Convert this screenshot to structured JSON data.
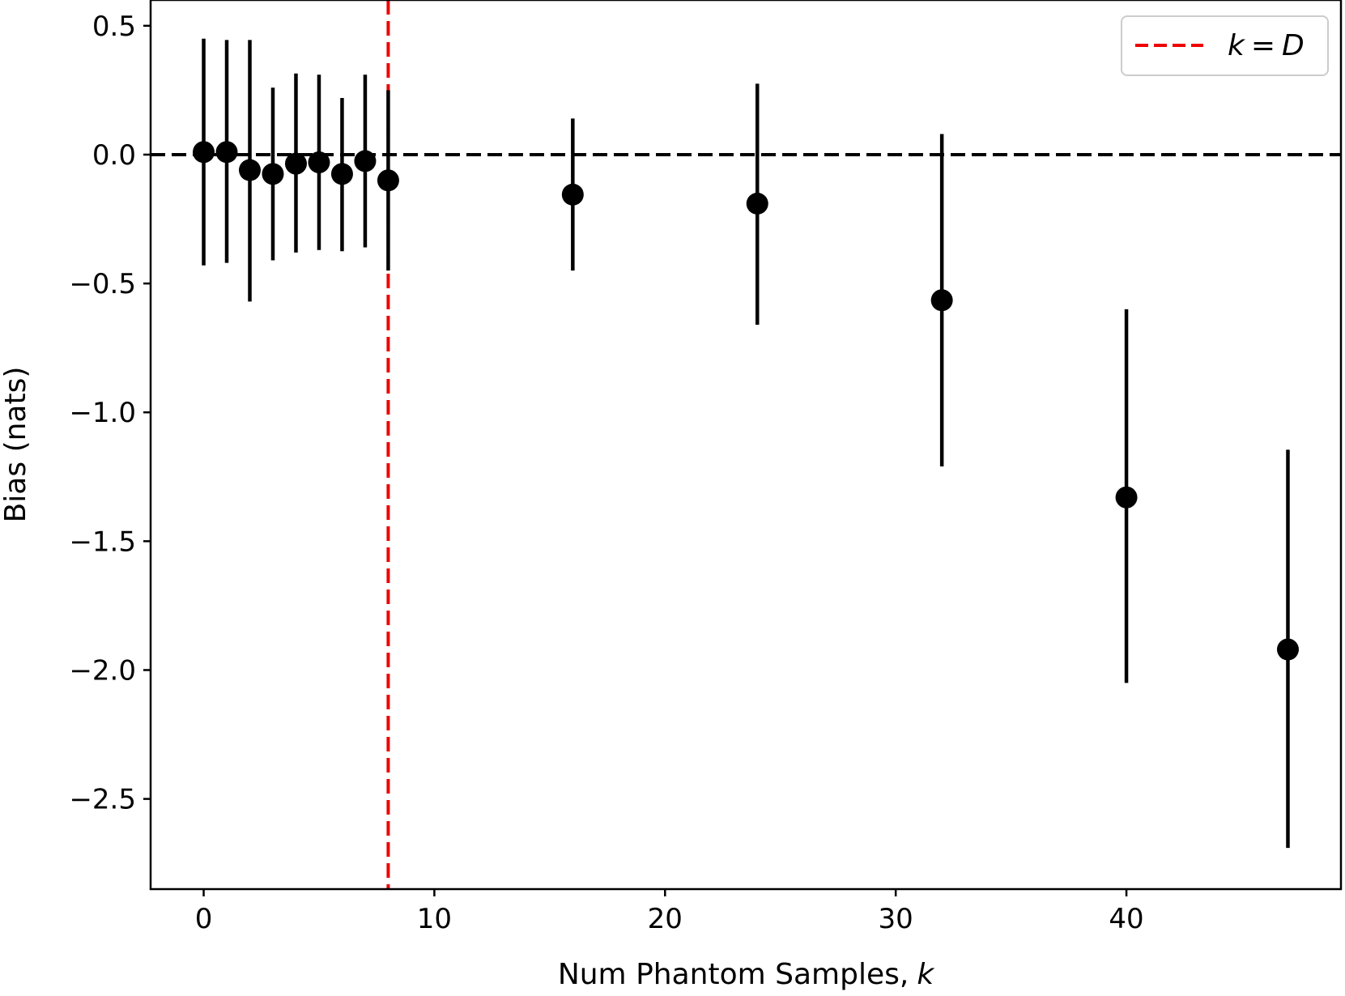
{
  "chart_data": {
    "type": "scatter",
    "title": "",
    "xlabel": "Num Phantom Samples,",
    "xlabel_var": "k",
    "ylabel": "Bias (nats)",
    "xlim": [
      -2.3,
      49.3
    ],
    "ylim": [
      -2.85,
      0.6
    ],
    "xticks": [
      0,
      10,
      20,
      30,
      40
    ],
    "xtick_labels": [
      "0",
      "10",
      "20",
      "30",
      "40"
    ],
    "yticks": [
      0.5,
      0.0,
      -0.5,
      -1.0,
      -1.5,
      -2.0,
      -2.5
    ],
    "ytick_labels": [
      "0.5",
      "0.0",
      "−0.5",
      "−1.0",
      "−1.5",
      "−2.0",
      "−2.5"
    ],
    "grid": false,
    "series": [
      {
        "name": "bias",
        "color": "#000000",
        "x": [
          0,
          1,
          2,
          3,
          4,
          5,
          6,
          7,
          8,
          16,
          24,
          32,
          40,
          47
        ],
        "y": [
          0.01,
          0.01,
          -0.06,
          -0.075,
          -0.035,
          -0.03,
          -0.075,
          -0.025,
          -0.1,
          -0.155,
          -0.19,
          -0.565,
          -1.33,
          -1.92
        ],
        "yerr_low": [
          -0.43,
          -0.42,
          -0.57,
          -0.41,
          -0.38,
          -0.37,
          -0.375,
          -0.36,
          -0.45,
          -0.45,
          -0.66,
          -1.21,
          -2.05,
          -2.69
        ],
        "yerr_high": [
          0.45,
          0.445,
          0.445,
          0.26,
          0.315,
          0.31,
          0.22,
          0.31,
          0.25,
          0.14,
          0.275,
          0.08,
          -0.6,
          -1.145
        ]
      }
    ],
    "reference_lines": [
      {
        "orientation": "horizontal",
        "value": 0.0,
        "color": "#000000",
        "style": "dashed"
      },
      {
        "orientation": "vertical",
        "value": 8,
        "color": "#ee0000",
        "style": "dashed",
        "legend": "k = D"
      }
    ],
    "legend": {
      "position": "top-right",
      "entries": [
        {
          "label_k": "k",
          "label_eq": "=",
          "label_D": "D",
          "color": "#ee0000",
          "style": "dashed"
        }
      ]
    }
  }
}
